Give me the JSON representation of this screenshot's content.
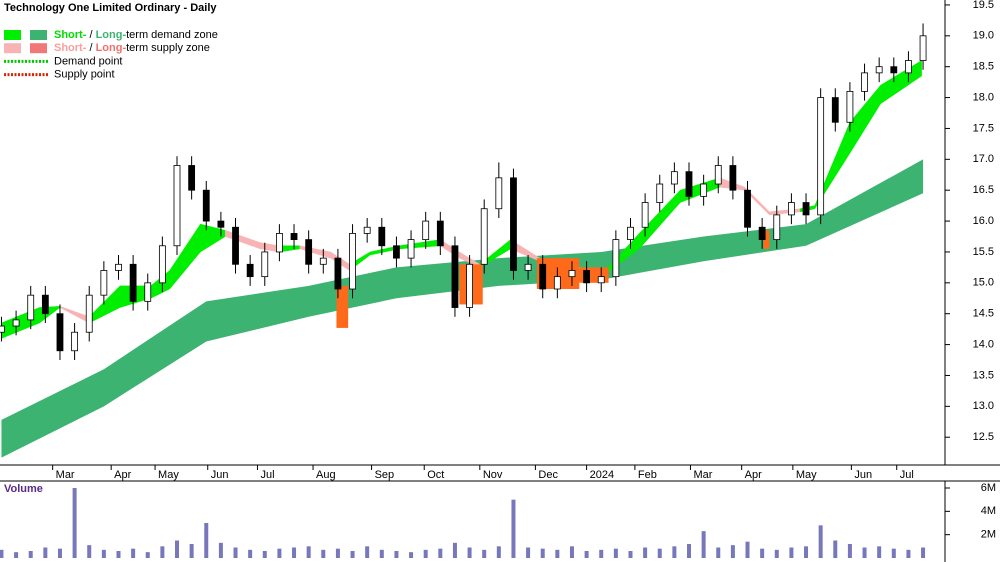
{
  "chart_data": [
    {
      "type": "candlestick",
      "title": "Technology One Limited Ordinary - Daily",
      "legend": [
        {
          "swatches": [
            "#00ee00",
            "#3cb371"
          ],
          "parts": [
            {
              "text": "Short-",
              "color": "#00dd00"
            },
            {
              "text": " / ",
              "color": "#000000"
            },
            {
              "text": "Long-",
              "color": "#3cb371"
            },
            {
              "text": "term demand zone",
              "color": "#000000"
            }
          ]
        },
        {
          "swatches": [
            "#f8b4b4",
            "#f07878"
          ],
          "parts": [
            {
              "text": "Short-",
              "color": "#f8a0a0"
            },
            {
              "text": " / ",
              "color": "#000000"
            },
            {
              "text": "Long-",
              "color": "#f07070"
            },
            {
              "text": "term supply zone",
              "color": "#000000"
            }
          ]
        },
        {
          "dotted": "#00cc00",
          "parts": [
            {
              "text": "Demand point",
              "color": "#000000"
            }
          ]
        },
        {
          "dotted": "#dd2200",
          "parts": [
            {
              "text": "Supply point",
              "color": "#000000"
            }
          ]
        }
      ],
      "x": [
        0,
        1,
        2,
        3,
        4,
        5,
        6,
        7,
        8,
        9,
        10,
        11,
        12,
        13,
        14,
        15,
        16,
        17,
        18,
        19,
        20,
        21,
        22,
        23,
        24,
        25,
        26,
        27,
        28,
        29,
        30,
        31,
        32,
        33,
        34,
        35,
        36,
        37,
        38,
        39,
        40,
        41,
        42,
        43,
        44,
        45,
        46,
        47,
        48,
        49,
        50,
        51,
        52,
        53,
        54,
        55,
        56,
        57,
        58,
        59,
        60,
        61,
        62,
        63
      ],
      "open": [
        14.2,
        14.3,
        14.4,
        14.8,
        14.5,
        13.9,
        14.2,
        14.8,
        15.2,
        15.3,
        14.7,
        15.0,
        15.6,
        16.9,
        16.5,
        16.0,
        15.9,
        15.3,
        15.1,
        15.5,
        15.8,
        15.7,
        15.3,
        15.4,
        14.9,
        15.8,
        15.9,
        15.6,
        15.4,
        15.7,
        16.0,
        15.6,
        14.6,
        15.3,
        16.2,
        16.7,
        15.2,
        15.3,
        14.9,
        15.1,
        15.2,
        15.0,
        15.1,
        15.7,
        15.9,
        16.3,
        16.6,
        16.8,
        16.4,
        16.6,
        16.9,
        16.5,
        15.9,
        15.7,
        16.1,
        16.3,
        16.1,
        18.0,
        17.6,
        18.1,
        18.4,
        18.5,
        18.4,
        18.6
      ],
      "high": [
        14.45,
        14.55,
        14.95,
        14.95,
        14.65,
        14.35,
        14.95,
        15.35,
        15.45,
        15.45,
        15.15,
        15.75,
        17.05,
        17.05,
        16.65,
        16.15,
        16.05,
        15.45,
        15.65,
        15.95,
        15.95,
        15.85,
        15.55,
        15.55,
        15.95,
        16.05,
        16.05,
        15.75,
        15.85,
        16.15,
        16.15,
        15.75,
        15.45,
        16.35,
        16.95,
        16.85,
        15.45,
        15.45,
        15.25,
        15.35,
        15.35,
        15.25,
        15.85,
        16.05,
        16.45,
        16.75,
        16.95,
        16.95,
        16.75,
        17.05,
        17.05,
        16.65,
        16.05,
        16.25,
        16.45,
        16.45,
        18.15,
        18.15,
        18.25,
        18.55,
        18.65,
        18.65,
        18.75,
        19.2
      ],
      "low": [
        14.05,
        14.15,
        14.25,
        14.35,
        13.75,
        13.75,
        14.05,
        14.65,
        15.05,
        14.55,
        14.55,
        14.85,
        15.45,
        16.35,
        15.85,
        15.75,
        15.15,
        14.95,
        14.95,
        15.35,
        15.55,
        15.15,
        15.15,
        14.75,
        14.75,
        15.65,
        15.45,
        15.25,
        15.25,
        15.55,
        15.45,
        14.45,
        14.45,
        15.15,
        16.05,
        15.05,
        15.05,
        14.75,
        14.75,
        14.95,
        14.85,
        14.85,
        14.95,
        15.55,
        15.75,
        16.15,
        16.45,
        16.25,
        16.25,
        16.45,
        16.35,
        15.75,
        15.55,
        15.55,
        15.95,
        15.95,
        15.95,
        17.45,
        17.45,
        17.95,
        18.25,
        18.25,
        18.25,
        18.45
      ],
      "close": [
        14.3,
        14.4,
        14.8,
        14.5,
        13.9,
        14.2,
        14.8,
        15.2,
        15.3,
        14.7,
        15.0,
        15.6,
        16.9,
        16.5,
        16.0,
        15.9,
        15.3,
        15.1,
        15.5,
        15.8,
        15.7,
        15.3,
        15.4,
        14.9,
        15.8,
        15.9,
        15.6,
        15.4,
        15.7,
        16.0,
        15.6,
        14.6,
        15.3,
        16.2,
        16.7,
        15.2,
        15.3,
        14.9,
        15.1,
        15.2,
        15.0,
        15.1,
        15.7,
        15.9,
        16.3,
        16.6,
        16.8,
        16.4,
        16.6,
        16.9,
        16.5,
        15.9,
        15.7,
        16.1,
        16.3,
        16.1,
        18.0,
        17.6,
        18.1,
        18.4,
        18.5,
        18.4,
        18.6,
        19.0
      ],
      "long_zone": {
        "color": "#3cb371",
        "x": [
          0,
          7,
          14,
          21,
          27,
          34,
          41,
          48,
          55,
          63
        ],
        "low": [
          12.17,
          13.0,
          14.05,
          14.45,
          14.75,
          14.95,
          15.05,
          15.35,
          15.6,
          16.45
        ],
        "high": [
          12.78,
          13.6,
          14.7,
          14.95,
          15.25,
          15.4,
          15.5,
          15.75,
          15.95,
          17.0
        ]
      },
      "short_zone": {
        "x": [
          0,
          2.6,
          4,
          6,
          8.1,
          10.2,
          11.5,
          13.6,
          15.3,
          17.7,
          19,
          20.4,
          22.5,
          23.8,
          25.2,
          27.2,
          30,
          31.3,
          32.7,
          34.8,
          36.8,
          39.5,
          41.3,
          43.6,
          46.4,
          49.1,
          50.8,
          52.5,
          54.6,
          55.6,
          58,
          60.1,
          62.9
        ],
        "low": [
          14.1,
          14.35,
          14.6,
          14.35,
          14.6,
          14.75,
          14.9,
          15.5,
          15.75,
          15.55,
          15.5,
          15.55,
          15.4,
          15.2,
          15.45,
          15.55,
          15.6,
          15.4,
          15.25,
          15.55,
          15.35,
          15.2,
          15.15,
          15.55,
          16.3,
          16.55,
          16.5,
          16.1,
          16.15,
          16.2,
          17.1,
          17.9,
          18.35
        ],
        "high": [
          14.35,
          14.6,
          14.62,
          14.45,
          14.95,
          14.95,
          15.2,
          15.95,
          15.85,
          15.65,
          15.6,
          15.6,
          15.5,
          15.3,
          15.5,
          15.6,
          15.7,
          15.5,
          15.3,
          15.7,
          15.4,
          15.25,
          15.2,
          15.8,
          16.5,
          16.7,
          16.55,
          16.15,
          16.2,
          16.25,
          17.6,
          18.2,
          18.6
        ],
        "colors": [
          "#00ee00",
          "#00ee00",
          "#f8b4b4",
          "#00ee00",
          "#00ee00",
          "#00ee00",
          "#00ee00",
          "#00ee00",
          "#f8b4b4",
          "#f8b4b4",
          "#00ee00",
          "#f8b4b4",
          "#f8b4b4",
          "#00ee00",
          "#00ee00",
          "#00ee00",
          "#f8b4b4",
          "#f8b4b4",
          "#00ee00",
          "#f8b4b4",
          "#f8b4b4",
          "#f8b4b4",
          "#00ee00",
          "#00ee00",
          "#00ee00",
          "#f8b4b4",
          "#f8b4b4",
          "#f8b4b4",
          "#00ee00",
          "#00ee00",
          "#00ee00",
          "#00ee00"
        ]
      },
      "highlights": {
        "color": "#ff6a1a",
        "zones": [
          {
            "x0": 22.9,
            "x1": 23.7,
            "low": 14.27,
            "high": 14.95
          },
          {
            "x0": 31.3,
            "x1": 32.9,
            "low": 14.65,
            "high": 15.3
          },
          {
            "x0": 36.6,
            "x1": 39.5,
            "low": 14.9,
            "high": 15.4
          },
          {
            "x0": 39.5,
            "x1": 41.5,
            "low": 15.0,
            "high": 15.25
          },
          {
            "x0": 52.1,
            "x1": 52.5,
            "low": 15.55,
            "high": 15.85
          }
        ]
      },
      "xlim": [
        -0.1,
        64.5
      ],
      "xticks": [
        {
          "value": 3.5,
          "label": "Mar"
        },
        {
          "value": 7.5,
          "label": "Apr"
        },
        {
          "value": 10.5,
          "label": "May"
        },
        {
          "value": 14.1,
          "label": "Jun"
        },
        {
          "value": 17.5,
          "label": "Jul"
        },
        {
          "value": 21.3,
          "label": "Aug"
        },
        {
          "value": 25.3,
          "label": "Sep"
        },
        {
          "value": 28.9,
          "label": "Oct"
        },
        {
          "value": 32.7,
          "label": "Nov"
        },
        {
          "value": 36.5,
          "label": "Dec"
        },
        {
          "value": 40.0,
          "label": "2024"
        },
        {
          "value": 43.3,
          "label": "Feb"
        },
        {
          "value": 47.1,
          "label": "Mar"
        },
        {
          "value": 50.6,
          "label": "Apr"
        },
        {
          "value": 54.1,
          "label": "May"
        },
        {
          "value": 58.1,
          "label": "Jun"
        },
        {
          "value": 61.2,
          "label": "Jul"
        }
      ],
      "ylim": [
        12.05,
        19.58
      ],
      "yticks": [
        12.5,
        {
          "value": 13,
          "label": "13.0"
        },
        13.5,
        {
          "value": 14,
          "label": "14.0"
        },
        14.5,
        {
          "value": 15,
          "label": "15.0"
        },
        15.5,
        {
          "value": 16,
          "label": "16.0"
        },
        16.5,
        {
          "value": 17,
          "label": "17.0"
        },
        17.5,
        {
          "value": 18,
          "label": "18.0"
        },
        18.5,
        {
          "value": 19,
          "label": "19.0"
        },
        19.5
      ]
    },
    {
      "type": "bar",
      "title": "Volume",
      "color": "#7777bb",
      "values": [
        700000,
        500000,
        600000,
        900000,
        800000,
        6000000,
        1100000,
        700000,
        600000,
        800000,
        500000,
        1000000,
        1500000,
        1200000,
        3000000,
        1300000,
        900000,
        700000,
        600000,
        800000,
        900000,
        1000000,
        700000,
        800000,
        600000,
        1000000,
        700000,
        600000,
        500000,
        700000,
        800000,
        1300000,
        900000,
        700000,
        1000000,
        5000000,
        900000,
        800000,
        700000,
        1000000,
        600000,
        700000,
        800000,
        600000,
        900000,
        800000,
        1000000,
        1200000,
        2300000,
        900000,
        1100000,
        1400000,
        800000,
        700000,
        900000,
        1000000,
        2800000,
        1500000,
        1200000,
        900000,
        1000000,
        800000,
        700000,
        900000
      ],
      "ylim": [
        0,
        6600000
      ],
      "yticks": [
        {
          "value": 2000000,
          "label": "2M"
        },
        {
          "value": 4000000,
          "label": "4M"
        },
        {
          "value": 6000000,
          "label": "6M"
        }
      ]
    }
  ]
}
